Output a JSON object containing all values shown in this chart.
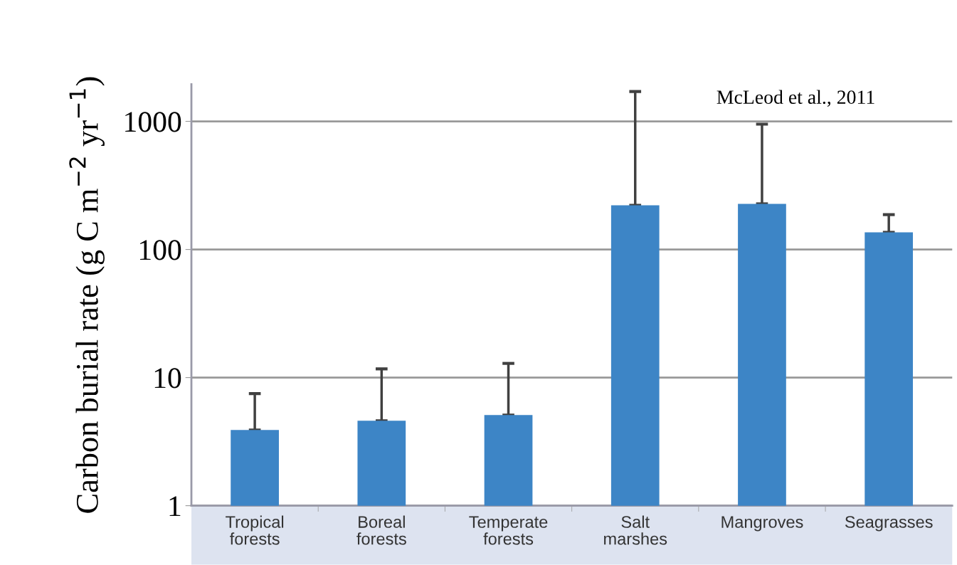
{
  "chart_data": {
    "type": "bar",
    "ylabel": "Carbon burial rate (g C m$^{−2}$ yr$^{−1}$)",
    "categories": [
      "Tropical\nforests",
      "Boreal\nforests",
      "Temperate\nforests",
      "Salt\nmarshes",
      "Mangroves",
      "Seagrasses"
    ],
    "values": [
      3.9,
      4.6,
      5.1,
      221,
      227,
      136
    ],
    "errors": [
      [
        3.9,
        7.5
      ],
      [
        4.6,
        11.7
      ],
      [
        5.1,
        12.9
      ],
      [
        221,
        1710
      ],
      [
        227,
        950
      ],
      [
        136,
        187
      ]
    ],
    "color": "#3d85c6",
    "log": true,
    "ylim": [
      1,
      1950
    ],
    "yticks": [
      1,
      10,
      100,
      1000
    ],
    "grid": "y",
    "annotations": [
      "McLeod et al., 2011"
    ]
  }
}
